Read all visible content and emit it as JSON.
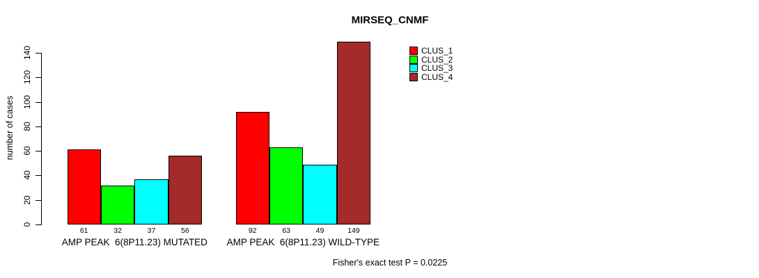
{
  "chart_data": {
    "type": "bar",
    "title": "MIRSEQ_CNMF",
    "ylabel": "number of cases",
    "ylim": [
      0,
      140
    ],
    "yticks": [
      0,
      20,
      40,
      60,
      80,
      100,
      120,
      140
    ],
    "grid": false,
    "legend_position": "inside-top-right",
    "categories": [
      "AMP PEAK  6(8P11.23) MUTATED",
      "AMP PEAK  6(8P11.23) WILD-TYPE"
    ],
    "series": [
      {
        "name": "CLUS_1",
        "color": "#FF0000",
        "values": [
          61,
          92
        ]
      },
      {
        "name": "CLUS_2",
        "color": "#00FF00",
        "values": [
          32,
          63
        ]
      },
      {
        "name": "CLUS_3",
        "color": "#00FFFF",
        "values": [
          37,
          49
        ]
      },
      {
        "name": "CLUS_4",
        "color": "#A52A2A",
        "values": [
          56,
          149
        ]
      }
    ],
    "bar_value_labels": [
      [
        "61",
        "32",
        "37",
        "56"
      ],
      [
        "92",
        "63",
        "49",
        "149"
      ]
    ],
    "annotation": "Fisher's exact test P = 0.0225"
  }
}
